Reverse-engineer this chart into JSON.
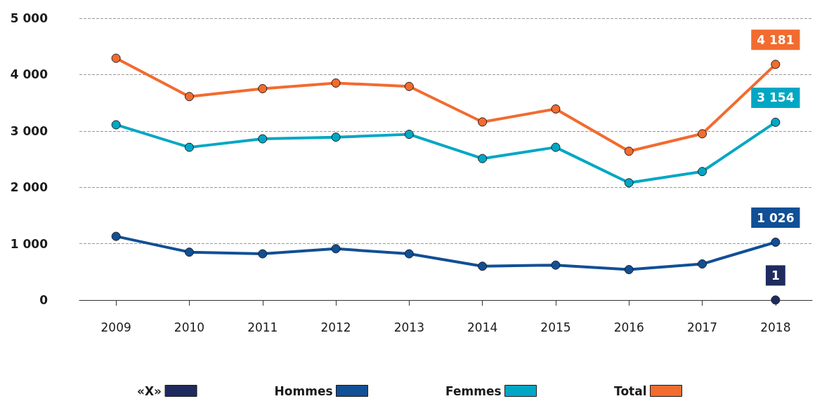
{
  "chart_data": {
    "type": "line",
    "categories": [
      "2009",
      "2010",
      "2011",
      "2012",
      "2013",
      "2014",
      "2015",
      "2016",
      "2017",
      "2018"
    ],
    "series": [
      {
        "name": "«X»",
        "color": "#1f2b5e",
        "values": [
          null,
          null,
          null,
          null,
          null,
          null,
          null,
          null,
          null,
          1
        ],
        "value_labels": [
          null,
          null,
          null,
          null,
          null,
          null,
          null,
          null,
          null,
          "1"
        ]
      },
      {
        "name": "Hommes",
        "color": "#114f96",
        "values": [
          1130,
          850,
          820,
          910,
          820,
          600,
          620,
          540,
          640,
          1026
        ],
        "value_labels": [
          null,
          null,
          null,
          null,
          null,
          null,
          null,
          null,
          null,
          "1 026"
        ]
      },
      {
        "name": "Femmes",
        "color": "#00a7c4",
        "values": [
          3110,
          2710,
          2860,
          2890,
          2940,
          2510,
          2710,
          2080,
          2280,
          3154
        ],
        "value_labels": [
          null,
          null,
          null,
          null,
          null,
          null,
          null,
          null,
          null,
          "3 154"
        ]
      },
      {
        "name": "Total",
        "color": "#f26b2f",
        "values": [
          4290,
          3610,
          3750,
          3850,
          3790,
          3160,
          3390,
          2640,
          2950,
          4181
        ],
        "value_labels": [
          null,
          null,
          null,
          null,
          null,
          null,
          null,
          null,
          null,
          "4 181"
        ]
      }
    ],
    "ylim": [
      0,
      5000
    ],
    "yticks": [
      0,
      {
        "value": 1000,
        "label": "1 000"
      },
      {
        "value": 2000,
        "label": "2 000"
      },
      {
        "value": 3000,
        "label": "3 000"
      },
      {
        "value": 4000,
        "label": "4 000"
      },
      {
        "value": 5000,
        "label": "5 000"
      }
    ],
    "grid": "y",
    "legend": "bottom",
    "marker": "circle",
    "line_style": "solid"
  }
}
